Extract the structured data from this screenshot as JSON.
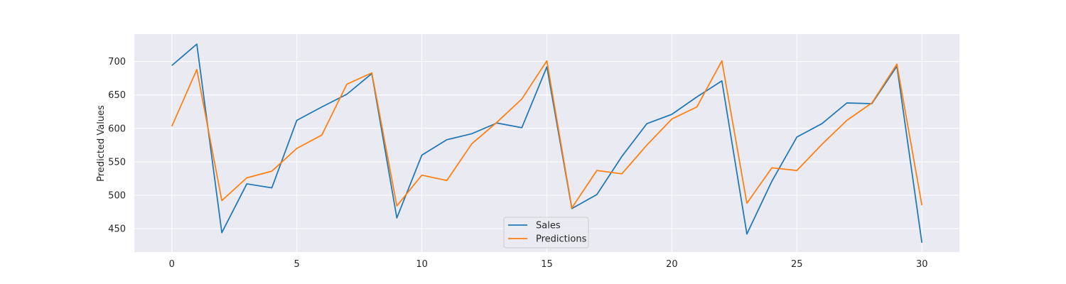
{
  "chart_data": {
    "type": "line",
    "title": "",
    "xlabel": "",
    "ylabel": "Predicted Values",
    "x": [
      0,
      1,
      2,
      3,
      4,
      5,
      6,
      7,
      8,
      9,
      10,
      11,
      12,
      13,
      14,
      15,
      16,
      17,
      18,
      19,
      20,
      21,
      22,
      23,
      24,
      25,
      26,
      27,
      28,
      29,
      30
    ],
    "xlim": [
      -1.5,
      31.5
    ],
    "ylim": [
      415,
      741
    ],
    "xticks": [
      0,
      5,
      10,
      15,
      20,
      25,
      30
    ],
    "yticks": [
      450,
      500,
      550,
      600,
      650,
      700
    ],
    "grid": true,
    "legend_position": "bottom-center",
    "series": [
      {
        "name": "Sales",
        "color": "#1f77b4",
        "values": [
          694,
          726,
          444,
          517,
          511,
          612,
          632,
          651,
          682,
          466,
          560,
          583,
          592,
          608,
          601,
          692,
          480,
          501,
          558,
          607,
          621,
          647,
          671,
          442,
          521,
          587,
          607,
          638,
          637,
          693,
          429
        ]
      },
      {
        "name": "Predictions",
        "color": "#ff7f0e",
        "values": [
          603,
          688,
          492,
          526,
          536,
          570,
          590,
          666,
          683,
          484,
          530,
          522,
          577,
          609,
          644,
          701,
          481,
          537,
          532,
          575,
          614,
          632,
          701,
          488,
          541,
          537,
          576,
          612,
          638,
          696,
          485
        ]
      }
    ],
    "style": {
      "plot_background": "#eaeaf2",
      "grid_color": "#ffffff"
    }
  }
}
